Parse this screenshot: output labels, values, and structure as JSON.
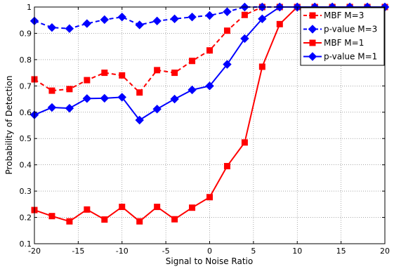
{
  "chart_data": {
    "type": "line",
    "title": "",
    "xlabel": "Signal to Noise Ratio",
    "ylabel": "Probability of Detection",
    "xlim": [
      -20,
      20
    ],
    "ylim": [
      0.1,
      1
    ],
    "xticks": [
      -20,
      -15,
      -10,
      -5,
      0,
      5,
      10,
      15,
      20
    ],
    "yticks": [
      0.1,
      0.2,
      0.3,
      0.4,
      0.5,
      0.6,
      0.7,
      0.8,
      0.9,
      1
    ],
    "xtick_labels": [
      "-20",
      "-15",
      "-10",
      "-5",
      "0",
      "5",
      "10",
      "15",
      "20"
    ],
    "ytick_labels": [
      "0.1",
      "0.2",
      "0.3",
      "0.4",
      "0.5",
      "0.6",
      "0.7",
      "0.8",
      "0.9",
      "1"
    ],
    "grid": true,
    "legend_position": "top-right",
    "x": [
      -20,
      -18,
      -16,
      -14,
      -12,
      -10,
      -8,
      -6,
      -4,
      -2,
      0,
      2,
      4,
      6,
      8,
      10,
      12,
      14,
      16,
      18,
      20
    ],
    "series": [
      {
        "name": "MBF M=3",
        "color": "#ff0000",
        "line_style": "dashed",
        "marker": "square",
        "values": [
          0.725,
          0.682,
          0.688,
          0.722,
          0.75,
          0.74,
          0.675,
          0.76,
          0.75,
          0.795,
          0.835,
          0.91,
          0.97,
          1,
          1,
          1,
          1,
          1,
          1,
          1,
          1
        ]
      },
      {
        "name": "p-value M=3",
        "color": "#0000ff",
        "line_style": "dashed",
        "marker": "diamond",
        "values": [
          0.947,
          0.922,
          0.918,
          0.937,
          0.952,
          0.962,
          0.932,
          0.947,
          0.955,
          0.962,
          0.968,
          0.982,
          1,
          1,
          1,
          1,
          1,
          1,
          1,
          1,
          1
        ]
      },
      {
        "name": "MBF M=1",
        "color": "#ff0000",
        "line_style": "solid",
        "marker": "square",
        "values": [
          0.228,
          0.205,
          0.185,
          0.23,
          0.192,
          0.24,
          0.185,
          0.24,
          0.193,
          0.237,
          0.277,
          0.395,
          0.485,
          0.773,
          0.935,
          1,
          1,
          1,
          1,
          1,
          1
        ]
      },
      {
        "name": "p-value M=1",
        "color": "#0000ff",
        "line_style": "solid",
        "marker": "diamond",
        "values": [
          0.59,
          0.618,
          0.615,
          0.652,
          0.653,
          0.657,
          0.57,
          0.612,
          0.65,
          0.685,
          0.7,
          0.782,
          0.88,
          0.955,
          1,
          1,
          1,
          1,
          1,
          1,
          1
        ]
      }
    ]
  }
}
